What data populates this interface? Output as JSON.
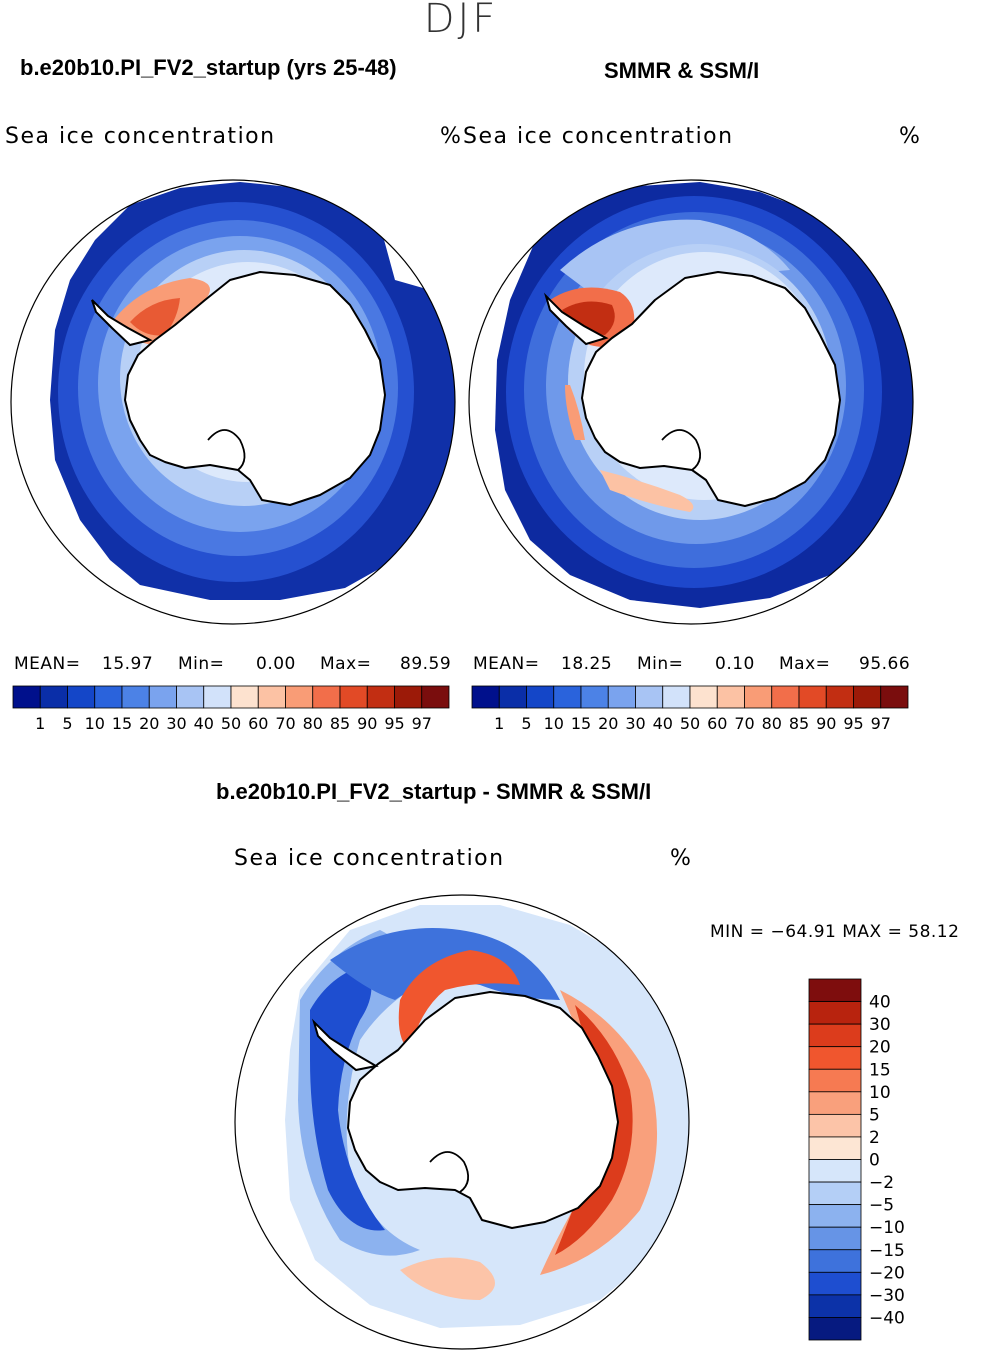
{
  "season": "DJF",
  "left_panel": {
    "title": "b.e20b10.PI_FV2_startup (yrs 25-48)",
    "subtitle": "Sea ice concentration",
    "units": "%",
    "mean_label": "MEAN=",
    "mean": "15.97",
    "min_label": "Min=",
    "min": "0.00",
    "max_label": "Max=",
    "max": "89.59"
  },
  "right_panel": {
    "title": "SMMR & SSM/I",
    "subtitle": "Sea ice concentration",
    "units": "%",
    "mean_label": "MEAN=",
    "mean": "18.25",
    "min_label": "Min=",
    "min": "0.10",
    "max_label": "Max=",
    "max": "95.66"
  },
  "concentration_scale": {
    "ticks": [
      "1",
      "5",
      "10",
      "15",
      "20",
      "30",
      "40",
      "50",
      "60",
      "70",
      "80",
      "85",
      "90",
      "95",
      "97"
    ],
    "colors": [
      "#00108c",
      "#0a2ea8",
      "#1446c8",
      "#2a63dc",
      "#4c82e6",
      "#7aa3ee",
      "#a8c4f4",
      "#d2e2fa",
      "#fde2cf",
      "#fcc2a4",
      "#f99c76",
      "#f26e4a",
      "#e24a26",
      "#c22e12",
      "#9c1a08",
      "#7a0d0d"
    ]
  },
  "diff_panel": {
    "title": "b.e20b10.PI_FV2_startup - SMMR & SSM/I",
    "subtitle": "Sea ice concentration",
    "units": "%",
    "minmax_text": "MIN = −64.91 MAX =   58.12"
  },
  "diff_scale": {
    "labels": [
      "40",
      "30",
      "20",
      "15",
      "10",
      "5",
      "2",
      "0",
      "−2",
      "−5",
      "−10",
      "−15",
      "−20",
      "−30",
      "−40"
    ],
    "colors": [
      "#7e0d0d",
      "#b8230e",
      "#dc3c1c",
      "#f0562e",
      "#f67a52",
      "#f9a07c",
      "#fcc4a8",
      "#fde6d4",
      "#d6e6fa",
      "#b4cff6",
      "#8cb2ef",
      "#6694e6",
      "#3e72dc",
      "#1e4ed0",
      "#0c32a8",
      "#061a80"
    ]
  }
}
